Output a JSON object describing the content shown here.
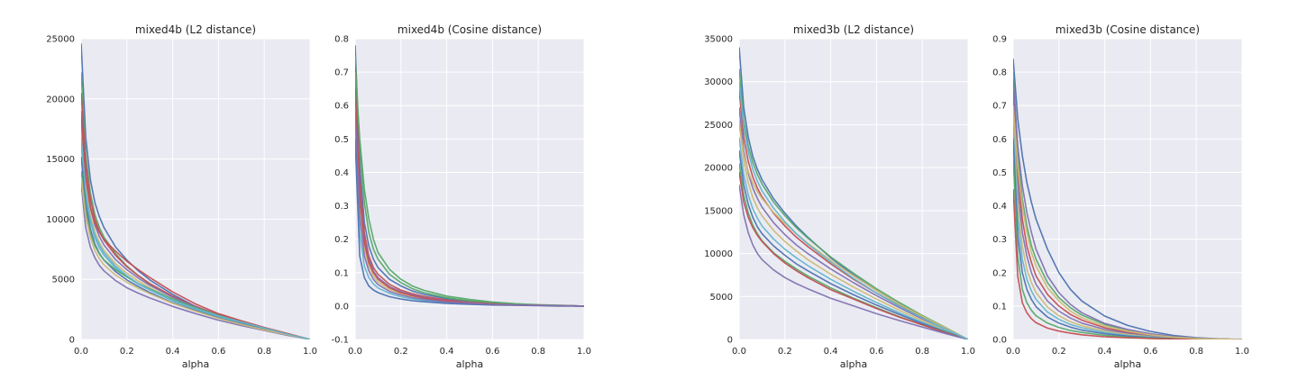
{
  "chart_data": [
    {
      "type": "line",
      "title": "mixed4b (L2 distance)",
      "xlabel": "alpha",
      "ylabel": "",
      "xlim": [
        0.0,
        1.0
      ],
      "ylim": [
        0,
        25000
      ],
      "xticks": [
        "0.0",
        "0.2",
        "0.4",
        "0.6",
        "0.8",
        "1.0"
      ],
      "yticks": [
        "0",
        "5000",
        "10000",
        "15000",
        "20000",
        "25000"
      ],
      "grid": true,
      "x": [
        0.0,
        0.02,
        0.04,
        0.06,
        0.08,
        0.1,
        0.15,
        0.2,
        0.25,
        0.3,
        0.4,
        0.5,
        0.6,
        0.7,
        0.8,
        0.9,
        1.0
      ],
      "series": [
        {
          "values": [
            24600,
            16800,
            13300,
            11400,
            10200,
            9300,
            7700,
            6600,
            5700,
            4950,
            3750,
            2750,
            2000,
            1450,
            950,
            450,
            0
          ]
        },
        {
          "values": [
            22200,
            15400,
            12200,
            10400,
            9300,
            8500,
            7150,
            6100,
            5300,
            4600,
            3500,
            2650,
            1950,
            1400,
            900,
            450,
            0
          ]
        },
        {
          "values": [
            20500,
            14600,
            11700,
            10000,
            9000,
            8250,
            7000,
            6050,
            5300,
            4650,
            3600,
            2750,
            2050,
            1500,
            950,
            450,
            0
          ]
        },
        {
          "values": [
            19000,
            13700,
            11000,
            9500,
            8550,
            7850,
            6650,
            5800,
            5100,
            4500,
            3500,
            2700,
            2000,
            1450,
            950,
            450,
            0
          ]
        },
        {
          "values": [
            17600,
            12900,
            10400,
            8950,
            8050,
            7400,
            6300,
            5500,
            4850,
            4300,
            3350,
            2600,
            1950,
            1400,
            900,
            450,
            0
          ]
        },
        {
          "values": [
            16200,
            12000,
            9800,
            8450,
            7600,
            7000,
            5950,
            5200,
            4600,
            4100,
            3200,
            2500,
            1900,
            1350,
            900,
            450,
            0
          ]
        },
        {
          "values": [
            15200,
            11300,
            9200,
            7950,
            7150,
            6600,
            5650,
            4950,
            4400,
            3900,
            3050,
            2400,
            1800,
            1300,
            850,
            400,
            0
          ]
        },
        {
          "values": [
            14000,
            10700,
            8900,
            7800,
            7100,
            6600,
            5800,
            5200,
            4650,
            4200,
            3350,
            2650,
            2000,
            1450,
            950,
            450,
            0
          ]
        },
        {
          "values": [
            18500,
            13500,
            11000,
            9700,
            8900,
            8300,
            7350,
            6500,
            5800,
            5150,
            3950,
            2950,
            2150,
            1550,
            1000,
            500,
            0
          ]
        },
        {
          "values": [
            13000,
            9300,
            7700,
            6800,
            6150,
            5700,
            4900,
            4300,
            3850,
            3450,
            2750,
            2150,
            1600,
            1150,
            750,
            350,
            0
          ]
        },
        {
          "values": [
            13500,
            10200,
            8500,
            7400,
            6700,
            6200,
            5350,
            4750,
            4250,
            3800,
            3000,
            2350,
            1750,
            1250,
            800,
            400,
            0
          ]
        },
        {
          "values": [
            16800,
            12300,
            10000,
            8700,
            7850,
            7200,
            6100,
            5300,
            4650,
            4150,
            3250,
            2550,
            1950,
            1450,
            950,
            450,
            0
          ]
        }
      ]
    },
    {
      "type": "line",
      "title": "mixed4b (Cosine distance)",
      "xlabel": "alpha",
      "ylabel": "",
      "xlim": [
        0.0,
        1.0
      ],
      "ylim": [
        -0.1,
        0.8
      ],
      "xticks": [
        "0.0",
        "0.2",
        "0.4",
        "0.6",
        "0.8",
        "1.0"
      ],
      "yticks": [
        "-0.1",
        "0.0",
        "0.1",
        "0.2",
        "0.3",
        "0.4",
        "0.5",
        "0.6",
        "0.7",
        "0.8"
      ],
      "grid": true,
      "x": [
        0.0,
        0.02,
        0.04,
        0.06,
        0.08,
        0.1,
        0.15,
        0.2,
        0.25,
        0.3,
        0.4,
        0.5,
        0.6,
        0.7,
        0.8,
        0.9,
        1.0
      ],
      "series": [
        {
          "values": [
            0.78,
            0.42,
            0.25,
            0.18,
            0.14,
            0.115,
            0.08,
            0.06,
            0.045,
            0.035,
            0.022,
            0.014,
            0.008,
            0.005,
            0.003,
            0.001,
            0.0
          ]
        },
        {
          "values": [
            0.75,
            0.48,
            0.31,
            0.22,
            0.17,
            0.14,
            0.095,
            0.07,
            0.052,
            0.04,
            0.025,
            0.016,
            0.01,
            0.006,
            0.003,
            0.001,
            0.0
          ]
        },
        {
          "values": [
            0.72,
            0.38,
            0.22,
            0.15,
            0.115,
            0.095,
            0.065,
            0.048,
            0.037,
            0.029,
            0.018,
            0.011,
            0.007,
            0.004,
            0.002,
            0.001,
            0.0
          ]
        },
        {
          "values": [
            0.68,
            0.35,
            0.2,
            0.14,
            0.105,
            0.085,
            0.058,
            0.043,
            0.033,
            0.026,
            0.016,
            0.01,
            0.006,
            0.004,
            0.002,
            0.001,
            0.0
          ]
        },
        {
          "values": [
            0.6,
            0.3,
            0.17,
            0.12,
            0.09,
            0.072,
            0.05,
            0.037,
            0.028,
            0.022,
            0.014,
            0.009,
            0.006,
            0.003,
            0.002,
            0.001,
            0.0
          ]
        },
        {
          "values": [
            0.55,
            0.22,
            0.12,
            0.085,
            0.066,
            0.054,
            0.038,
            0.028,
            0.021,
            0.017,
            0.011,
            0.007,
            0.004,
            0.003,
            0.002,
            0.001,
            0.0
          ]
        },
        {
          "values": [
            0.5,
            0.15,
            0.085,
            0.06,
            0.048,
            0.04,
            0.028,
            0.021,
            0.016,
            0.013,
            0.008,
            0.005,
            0.003,
            0.002,
            0.001,
            0.0,
            0.0
          ]
        },
        {
          "values": [
            0.7,
            0.5,
            0.35,
            0.26,
            0.2,
            0.16,
            0.11,
            0.08,
            0.06,
            0.047,
            0.03,
            0.02,
            0.012,
            0.007,
            0.004,
            0.002,
            0.0
          ]
        },
        {
          "values": [
            0.65,
            0.33,
            0.19,
            0.13,
            0.1,
            0.08,
            0.055,
            0.04,
            0.031,
            0.024,
            0.015,
            0.009,
            0.006,
            0.003,
            0.002,
            0.001,
            0.0
          ]
        },
        {
          "values": [
            0.58,
            0.27,
            0.15,
            0.105,
            0.08,
            0.064,
            0.044,
            0.033,
            0.025,
            0.02,
            0.012,
            0.008,
            0.005,
            0.003,
            0.002,
            0.001,
            0.0
          ]
        }
      ]
    },
    {
      "type": "line",
      "title": "mixed3b (L2 distance)",
      "xlabel": "alpha",
      "ylabel": "",
      "xlim": [
        0.0,
        1.0
      ],
      "ylim": [
        0,
        35000
      ],
      "xticks": [
        "0.0",
        "0.2",
        "0.4",
        "0.6",
        "0.8",
        "1.0"
      ],
      "yticks": [
        "0",
        "5000",
        "10000",
        "15000",
        "20000",
        "25000",
        "30000",
        "35000"
      ],
      "grid": true,
      "x": [
        0.0,
        0.02,
        0.04,
        0.06,
        0.08,
        0.1,
        0.15,
        0.2,
        0.25,
        0.3,
        0.4,
        0.5,
        0.6,
        0.7,
        0.8,
        0.9,
        1.0
      ],
      "series": [
        {
          "values": [
            34000,
            27000,
            23500,
            21300,
            19800,
            18600,
            16400,
            14700,
            13200,
            11900,
            9500,
            7500,
            5700,
            4100,
            2650,
            1300,
            0
          ]
        },
        {
          "values": [
            31500,
            25500,
            22500,
            20600,
            19200,
            18100,
            16000,
            14400,
            13000,
            11800,
            9600,
            7700,
            5900,
            4300,
            2800,
            1400,
            0
          ]
        },
        {
          "values": [
            29000,
            23500,
            20700,
            18900,
            17600,
            16600,
            14700,
            13200,
            11900,
            10800,
            8800,
            7000,
            5400,
            3900,
            2550,
            1250,
            0
          ]
        },
        {
          "values": [
            27000,
            22000,
            19300,
            17600,
            16400,
            15400,
            13600,
            12200,
            11000,
            10000,
            8200,
            6600,
            5100,
            3700,
            2400,
            1200,
            0
          ]
        },
        {
          "values": [
            25500,
            20800,
            18200,
            16500,
            15300,
            14400,
            12700,
            11400,
            10300,
            9300,
            7600,
            6100,
            4700,
            3400,
            2200,
            1100,
            0
          ]
        },
        {
          "values": [
            23500,
            19200,
            16800,
            15200,
            14100,
            13200,
            11700,
            10500,
            9500,
            8600,
            7000,
            5600,
            4300,
            3100,
            2000,
            1000,
            0
          ]
        },
        {
          "values": [
            22000,
            18000,
            15700,
            14200,
            13100,
            12300,
            10900,
            9800,
            8800,
            8000,
            6500,
            5200,
            4000,
            2900,
            1850,
            900,
            0
          ]
        },
        {
          "values": [
            20500,
            16800,
            14700,
            13300,
            12300,
            11500,
            10100,
            9100,
            8200,
            7400,
            6000,
            4800,
            3700,
            2650,
            1700,
            850,
            0
          ]
        },
        {
          "values": [
            19500,
            16000,
            14200,
            13000,
            12100,
            11400,
            10000,
            8900,
            8000,
            7200,
            5800,
            4700,
            3600,
            2600,
            1700,
            800,
            0
          ]
        },
        {
          "values": [
            18000,
            14500,
            12400,
            11000,
            10000,
            9300,
            8100,
            7200,
            6500,
            5900,
            4800,
            3900,
            3000,
            2200,
            1450,
            700,
            0
          ]
        },
        {
          "values": [
            25000,
            21500,
            19500,
            18200,
            17200,
            16400,
            14800,
            13500,
            12300,
            11200,
            9200,
            7400,
            5700,
            4100,
            2700,
            1350,
            0
          ]
        },
        {
          "values": [
            30000,
            24800,
            21800,
            19800,
            18400,
            17300,
            15300,
            13700,
            12300,
            11100,
            9000,
            7100,
            5400,
            3900,
            2500,
            1200,
            0
          ]
        }
      ]
    },
    {
      "type": "line",
      "title": "mixed3b (Cosine distance)",
      "xlabel": "alpha",
      "ylabel": "",
      "xlim": [
        0.0,
        1.0
      ],
      "ylim": [
        0.0,
        0.9
      ],
      "xticks": [
        "0.0",
        "0.2",
        "0.4",
        "0.6",
        "0.8",
        "1.0"
      ],
      "yticks": [
        "0.0",
        "0.1",
        "0.2",
        "0.3",
        "0.4",
        "0.5",
        "0.6",
        "0.7",
        "0.8",
        "0.9"
      ],
      "grid": true,
      "x": [
        0.0,
        0.02,
        0.04,
        0.06,
        0.08,
        0.1,
        0.15,
        0.2,
        0.25,
        0.3,
        0.4,
        0.5,
        0.6,
        0.7,
        0.8,
        0.9,
        1.0
      ],
      "series": [
        {
          "values": [
            0.84,
            0.66,
            0.55,
            0.47,
            0.41,
            0.36,
            0.27,
            0.2,
            0.15,
            0.115,
            0.07,
            0.042,
            0.024,
            0.012,
            0.005,
            0.002,
            0.0
          ]
        },
        {
          "values": [
            0.8,
            0.56,
            0.42,
            0.34,
            0.28,
            0.24,
            0.17,
            0.125,
            0.095,
            0.073,
            0.045,
            0.028,
            0.016,
            0.008,
            0.004,
            0.001,
            0.0
          ]
        },
        {
          "values": [
            0.76,
            0.5,
            0.36,
            0.28,
            0.23,
            0.19,
            0.135,
            0.1,
            0.075,
            0.058,
            0.035,
            0.021,
            0.012,
            0.006,
            0.003,
            0.001,
            0.0
          ]
        },
        {
          "values": [
            0.72,
            0.45,
            0.32,
            0.25,
            0.2,
            0.165,
            0.115,
            0.085,
            0.064,
            0.049,
            0.03,
            0.018,
            0.01,
            0.005,
            0.002,
            0.001,
            0.0
          ]
        },
        {
          "values": [
            0.68,
            0.4,
            0.28,
            0.21,
            0.17,
            0.14,
            0.097,
            0.071,
            0.053,
            0.041,
            0.025,
            0.015,
            0.008,
            0.004,
            0.002,
            0.001,
            0.0
          ]
        },
        {
          "values": [
            0.64,
            0.36,
            0.24,
            0.18,
            0.145,
            0.12,
            0.082,
            0.06,
            0.045,
            0.035,
            0.021,
            0.012,
            0.007,
            0.003,
            0.001,
            0.0,
            0.0
          ]
        },
        {
          "values": [
            0.6,
            0.31,
            0.2,
            0.15,
            0.12,
            0.098,
            0.067,
            0.049,
            0.037,
            0.028,
            0.017,
            0.01,
            0.005,
            0.003,
            0.001,
            0.0,
            0.0
          ]
        },
        {
          "values": [
            0.55,
            0.25,
            0.15,
            0.11,
            0.087,
            0.071,
            0.049,
            0.036,
            0.027,
            0.021,
            0.012,
            0.007,
            0.004,
            0.002,
            0.001,
            0.0,
            0.0
          ]
        },
        {
          "values": [
            0.45,
            0.19,
            0.11,
            0.08,
            0.062,
            0.05,
            0.034,
            0.025,
            0.019,
            0.014,
            0.008,
            0.005,
            0.003,
            0.001,
            0.0,
            0.0,
            0.0
          ]
        },
        {
          "values": [
            0.78,
            0.58,
            0.46,
            0.38,
            0.32,
            0.27,
            0.19,
            0.14,
            0.105,
            0.08,
            0.048,
            0.03,
            0.017,
            0.009,
            0.004,
            0.001,
            0.0
          ]
        },
        {
          "values": [
            0.7,
            0.52,
            0.4,
            0.32,
            0.26,
            0.22,
            0.155,
            0.115,
            0.085,
            0.065,
            0.04,
            0.025,
            0.014,
            0.007,
            0.003,
            0.001,
            0.0
          ]
        }
      ]
    }
  ],
  "style": {
    "palette": [
      "#4c72b0",
      "#55a868",
      "#c44e52",
      "#8172b2",
      "#ccb974",
      "#64b5cd"
    ],
    "background": "#eaeaf2",
    "grid_color": "#ffffff"
  }
}
